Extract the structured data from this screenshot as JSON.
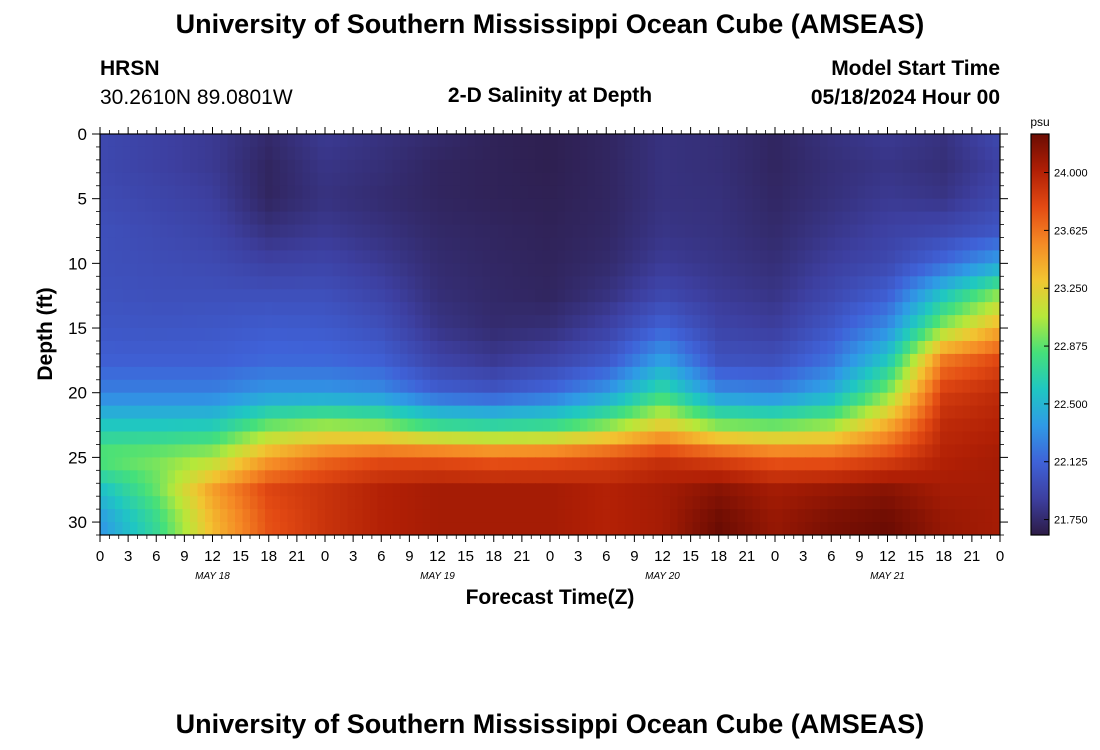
{
  "header": {
    "title": "University of Southern Mississippi Ocean Cube (AMSEAS)",
    "station": "HRSN",
    "coords": "30.2610N  89.0801W",
    "plot_title": "2-D Salinity at Depth",
    "model_start_label": "Model Start Time",
    "model_start_value": "05/18/2024 Hour 00"
  },
  "footer": {
    "title": "University of Southern Mississippi Ocean Cube (AMSEAS)"
  },
  "chart_data": {
    "type": "heatmap",
    "title": "2-D Salinity at Depth",
    "xlabel": "Forecast Time(Z)",
    "ylabel": "Depth (ft)",
    "x_ticks": [
      "0",
      "3",
      "6",
      "9",
      "12",
      "15",
      "18",
      "21",
      "0",
      "3",
      "6",
      "9",
      "12",
      "15",
      "18",
      "21",
      "0",
      "3",
      "6",
      "9",
      "12",
      "15",
      "18",
      "21",
      "0",
      "3",
      "6",
      "9",
      "12",
      "15",
      "18",
      "21",
      "0"
    ],
    "date_labels": [
      "MAY 18",
      "MAY 19",
      "MAY 20",
      "MAY 21"
    ],
    "x_range_hours": [
      0,
      96
    ],
    "y_ticks": [
      0,
      5,
      10,
      15,
      20,
      25,
      30
    ],
    "ylim": [
      31,
      0
    ],
    "colorbar": {
      "unit": "psu",
      "ticks": [
        "24.000",
        "23.625",
        "23.250",
        "22.875",
        "22.500",
        "22.125",
        "21.750"
      ],
      "range": [
        21.65,
        24.25
      ]
    },
    "colormap": [
      "#2c1b45",
      "#3d3fa0",
      "#3f62d8",
      "#2f9ae6",
      "#1fc7c2",
      "#45e07a",
      "#b6e83a",
      "#f2c531",
      "#f58a25",
      "#e34a13",
      "#b01f05",
      "#6b0c03"
    ],
    "depths_ft": [
      0,
      2.5,
      5,
      7.5,
      10,
      12.5,
      15,
      17.5,
      20,
      22.5,
      25,
      27.5,
      30,
      31
    ],
    "times_h": [
      0,
      6,
      12,
      18,
      24,
      30,
      36,
      42,
      48,
      54,
      60,
      66,
      72,
      78,
      84,
      90,
      96
    ],
    "values": [
      [
        21.95,
        21.9,
        21.85,
        21.75,
        21.85,
        21.8,
        21.75,
        21.7,
        21.68,
        21.72,
        21.8,
        21.78,
        21.72,
        21.8,
        21.85,
        21.8,
        21.95
      ],
      [
        21.95,
        21.9,
        21.85,
        21.72,
        21.82,
        21.78,
        21.72,
        21.7,
        21.68,
        21.72,
        21.8,
        21.78,
        21.72,
        21.78,
        21.82,
        21.78,
        21.9
      ],
      [
        21.97,
        21.93,
        21.88,
        21.72,
        21.8,
        21.76,
        21.72,
        21.7,
        21.69,
        21.72,
        21.8,
        21.79,
        21.73,
        21.79,
        21.85,
        21.82,
        21.95
      ],
      [
        22.0,
        21.96,
        21.92,
        21.8,
        21.85,
        21.8,
        21.74,
        21.72,
        21.7,
        21.73,
        21.82,
        21.8,
        21.75,
        21.83,
        21.9,
        21.95,
        22.05
      ],
      [
        22.0,
        21.98,
        21.96,
        21.9,
        21.92,
        21.85,
        21.76,
        21.73,
        21.71,
        21.75,
        21.86,
        21.82,
        21.78,
        21.88,
        21.95,
        22.15,
        22.4
      ],
      [
        22.02,
        22.0,
        22.0,
        22.0,
        22.0,
        21.92,
        21.78,
        21.74,
        21.72,
        21.8,
        21.95,
        21.86,
        21.82,
        21.95,
        22.1,
        22.6,
        23.0
      ],
      [
        22.05,
        22.04,
        22.05,
        22.08,
        22.07,
        22.0,
        21.82,
        21.76,
        21.78,
        21.9,
        22.12,
        21.92,
        21.88,
        22.05,
        22.3,
        23.0,
        23.4
      ],
      [
        22.1,
        22.1,
        22.1,
        22.15,
        22.15,
        22.1,
        21.92,
        21.85,
        21.92,
        22.05,
        22.4,
        22.02,
        22.0,
        22.2,
        22.6,
        23.6,
        23.8
      ],
      [
        22.25,
        22.25,
        22.25,
        22.35,
        22.35,
        22.3,
        22.1,
        22.05,
        22.15,
        22.35,
        22.75,
        22.3,
        22.25,
        22.45,
        22.95,
        23.85,
        23.95
      ],
      [
        22.6,
        22.6,
        22.62,
        22.9,
        23.0,
        22.95,
        22.75,
        22.7,
        22.75,
        22.95,
        23.25,
        22.95,
        22.9,
        23.0,
        23.4,
        23.95,
        24.0
      ],
      [
        22.9,
        22.95,
        23.05,
        23.45,
        23.65,
        23.75,
        23.75,
        23.7,
        23.72,
        23.8,
        23.9,
        23.8,
        23.7,
        23.7,
        23.8,
        24.0,
        24.05
      ],
      [
        22.55,
        22.9,
        23.45,
        23.8,
        23.9,
        24.0,
        24.05,
        24.05,
        24.05,
        24.0,
        24.05,
        24.15,
        24.05,
        24.1,
        24.15,
        24.05,
        24.05
      ],
      [
        22.35,
        22.75,
        23.35,
        23.75,
        23.9,
        24.0,
        24.05,
        24.05,
        24.05,
        24.0,
        24.05,
        24.25,
        24.1,
        24.2,
        24.25,
        24.1,
        24.05
      ],
      [
        22.35,
        22.75,
        23.35,
        23.75,
        23.9,
        24.0,
        24.05,
        24.05,
        24.05,
        24.0,
        24.05,
        24.25,
        24.1,
        24.2,
        24.25,
        24.1,
        24.05
      ]
    ]
  }
}
